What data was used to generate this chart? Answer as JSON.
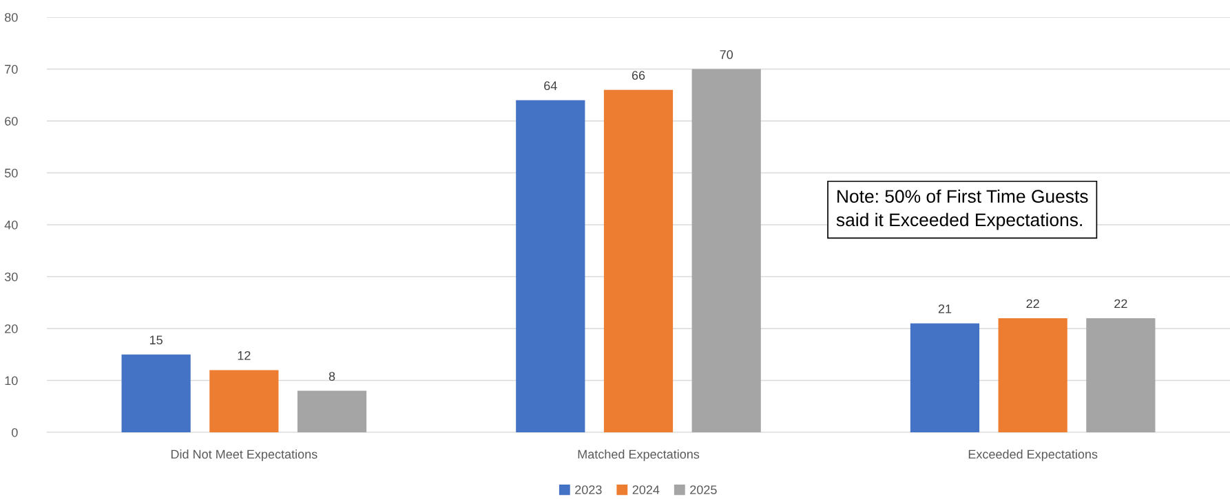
{
  "chart_data": {
    "type": "bar",
    "categories": [
      "Did Not Meet Expectations",
      "Matched Expectations",
      "Exceeded Expectations"
    ],
    "series": [
      {
        "name": "2023",
        "color": "#4472c4",
        "values": [
          15,
          64,
          21
        ]
      },
      {
        "name": "2024",
        "color": "#ed7d31",
        "values": [
          12,
          66,
          22
        ]
      },
      {
        "name": "2025",
        "color": "#a5a5a5",
        "values": [
          8,
          70,
          22
        ]
      }
    ],
    "ylim": [
      0,
      80
    ],
    "yticks": [
      0,
      10,
      20,
      30,
      40,
      50,
      60,
      70,
      80
    ],
    "grid": "y",
    "legend": "bottom",
    "data_labels": true,
    "annotations": [
      "Note: 50% of First Time Guests\nsaid it Exceeded Expectations."
    ]
  }
}
